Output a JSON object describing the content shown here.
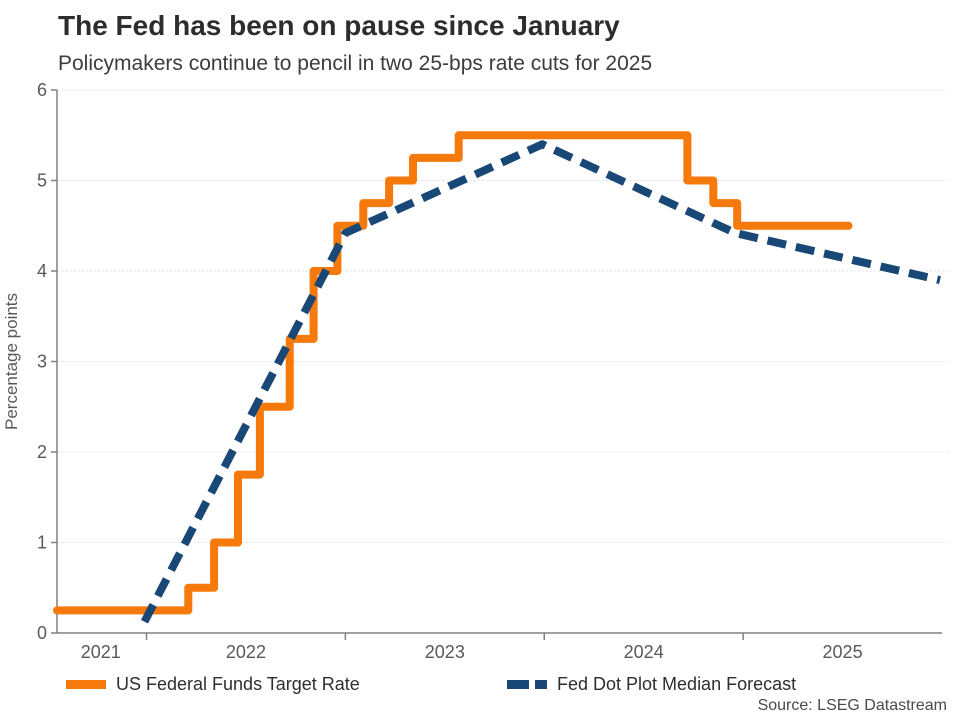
{
  "header": {
    "title": "The Fed has been on pause since January",
    "subtitle": "Policymakers continue to pencil in two 25-bps rate cuts for 2025"
  },
  "chart_data": {
    "type": "line",
    "title": "The Fed has been on pause since January",
    "subtitle": "Policymakers continue to pencil in two 25-bps rate cuts for 2025",
    "ylabel": "Percentage points",
    "xlabel": "",
    "ylim": [
      0,
      6
    ],
    "xlim": [
      2021.55,
      2026.0
    ],
    "yticks": [
      0,
      1,
      2,
      3,
      4,
      5,
      6
    ],
    "xticks": [
      2022,
      2023,
      2024,
      2025
    ],
    "xtick_labels": [
      "2021",
      "2022",
      "2023",
      "2024",
      "2025"
    ],
    "xtick_label_positions": [
      2021.77,
      2022.5,
      2023.5,
      2024.5,
      2025.5
    ],
    "grid": "horizontal-dotted",
    "legend_position": "bottom",
    "source": "Source: LSEG Datastream",
    "series": [
      {
        "id": "fed-funds-rate",
        "name": "US Federal Funds Target Rate",
        "color": "#F5790B",
        "style": "step-solid",
        "stroke_width": 8,
        "points": [
          [
            2021.55,
            0.25
          ],
          [
            2022.21,
            0.25
          ],
          [
            2022.21,
            0.5
          ],
          [
            2022.34,
            0.5
          ],
          [
            2022.34,
            1.0
          ],
          [
            2022.46,
            1.0
          ],
          [
            2022.46,
            1.75
          ],
          [
            2022.57,
            1.75
          ],
          [
            2022.57,
            2.5
          ],
          [
            2022.72,
            2.5
          ],
          [
            2022.72,
            3.25
          ],
          [
            2022.84,
            3.25
          ],
          [
            2022.84,
            4.0
          ],
          [
            2022.96,
            4.0
          ],
          [
            2022.96,
            4.5
          ],
          [
            2023.09,
            4.5
          ],
          [
            2023.09,
            4.75
          ],
          [
            2023.22,
            4.75
          ],
          [
            2023.22,
            5.0
          ],
          [
            2023.34,
            5.0
          ],
          [
            2023.34,
            5.25
          ],
          [
            2023.57,
            5.25
          ],
          [
            2023.57,
            5.5
          ],
          [
            2024.72,
            5.5
          ],
          [
            2024.72,
            5.0
          ],
          [
            2024.85,
            5.0
          ],
          [
            2024.85,
            4.75
          ],
          [
            2024.97,
            4.75
          ],
          [
            2024.97,
            4.5
          ],
          [
            2025.53,
            4.5
          ]
        ]
      },
      {
        "id": "dot-plot-median",
        "name": "Fed Dot Plot Median Forecast",
        "color": "#1A4876",
        "style": "dashed",
        "stroke_width": 8,
        "dash": "19 10",
        "points": [
          [
            2021.99,
            0.125
          ],
          [
            2023.0,
            4.42
          ],
          [
            2023.99,
            5.4
          ],
          [
            2024.96,
            4.42
          ],
          [
            2025.99,
            3.9
          ]
        ]
      }
    ]
  }
}
